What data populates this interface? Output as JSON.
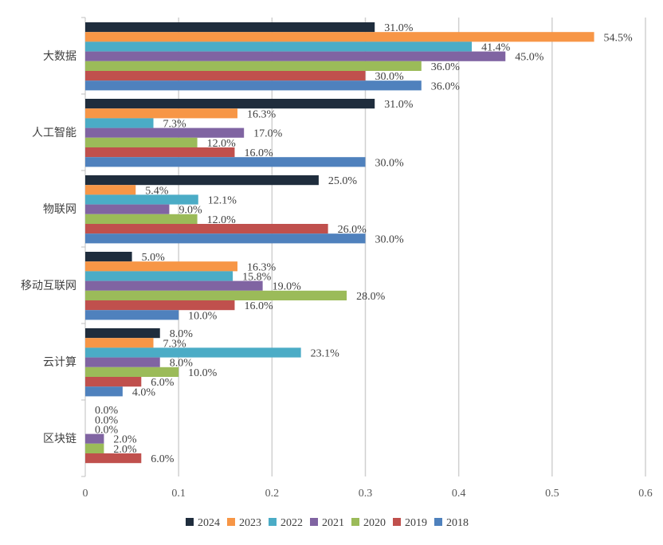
{
  "chart_data": {
    "type": "bar",
    "orientation": "horizontal",
    "categories": [
      "大数据",
      "人工智能",
      "物联网",
      "移动互联网",
      "云计算",
      "区块链"
    ],
    "series": [
      {
        "name": "2024",
        "color": "#1f2d3d",
        "values": [
          0.31,
          0.31,
          0.25,
          0.05,
          0.08,
          0.0
        ],
        "labels": [
          "31.0%",
          "31.0%",
          "25.0%",
          "5.0%",
          "8.0%",
          "0.0%"
        ]
      },
      {
        "name": "2023",
        "color": "#f79646",
        "values": [
          0.545,
          0.163,
          0.054,
          0.163,
          0.073,
          0.0
        ],
        "labels": [
          "54.5%",
          "16.3%",
          "5.4%",
          "16.3%",
          "7.3%",
          "0.0%"
        ]
      },
      {
        "name": "2022",
        "color": "#4bacc6",
        "values": [
          0.414,
          0.073,
          0.121,
          0.158,
          0.231,
          0.0
        ],
        "labels": [
          "41.4%",
          "7.3%",
          "12.1%",
          "15.8%",
          "23.1%",
          "0.0%"
        ]
      },
      {
        "name": "2021",
        "color": "#8064a2",
        "values": [
          0.45,
          0.17,
          0.09,
          0.19,
          0.08,
          0.02
        ],
        "labels": [
          "45.0%",
          "17.0%",
          "9.0%",
          "19.0%",
          "8.0%",
          "2.0%"
        ]
      },
      {
        "name": "2020",
        "color": "#9bbb59",
        "values": [
          0.36,
          0.12,
          0.12,
          0.28,
          0.1,
          0.02
        ],
        "labels": [
          "36.0%",
          "12.0%",
          "12.0%",
          "28.0%",
          "10.0%",
          "2.0%"
        ]
      },
      {
        "name": "2019",
        "color": "#c0504d",
        "values": [
          0.3,
          0.16,
          0.26,
          0.16,
          0.06,
          0.06
        ],
        "labels": [
          "30.0%",
          "16.0%",
          "26.0%",
          "16.0%",
          "6.0%",
          "6.0%"
        ]
      },
      {
        "name": "2018",
        "color": "#4f81bd",
        "values": [
          0.36,
          0.3,
          0.3,
          0.1,
          0.04,
          null
        ],
        "labels": [
          "36.0%",
          "30.0%",
          "30.0%",
          "10.0%",
          "4.0%",
          null
        ]
      }
    ],
    "xlim": [
      0,
      0.6
    ],
    "xticks": [
      0,
      0.1,
      0.2,
      0.3,
      0.4,
      0.5,
      0.6
    ],
    "xtick_labels": [
      "0",
      "0.1",
      "0.2",
      "0.3",
      "0.4",
      "0.5",
      "0.6"
    ],
    "grid": "vertical",
    "legend": "bottom",
    "title": "",
    "xlabel": "",
    "ylabel": ""
  }
}
